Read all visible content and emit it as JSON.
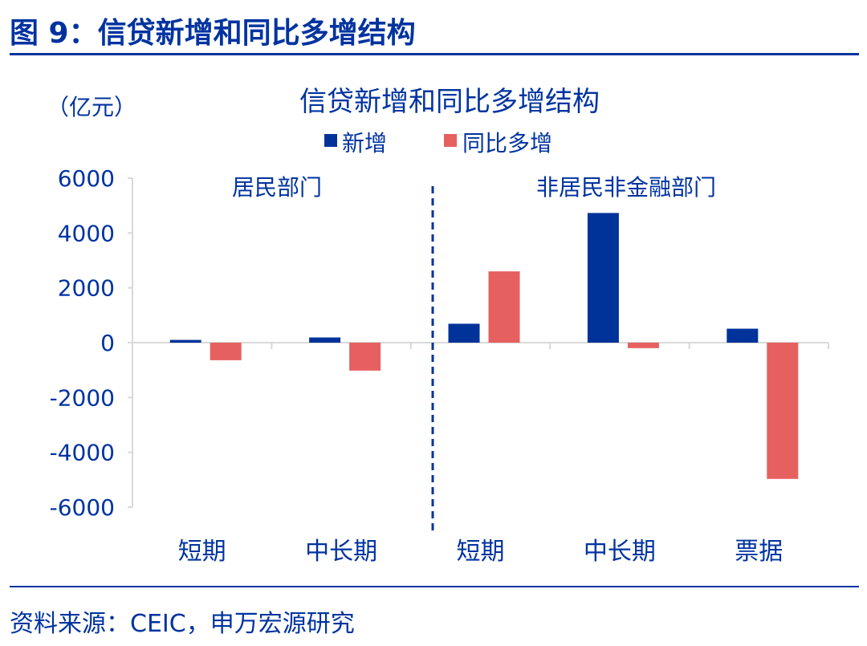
{
  "figure_title": "图 9：信贷新增和同比多增结构",
  "source": "资料来源：CEIC，申万宏源研究",
  "chart_data": {
    "type": "bar",
    "title": "信贷新增和同比多增结构",
    "ylabel": "（亿元）",
    "xlabel": "",
    "ylim": [
      -6000,
      6000
    ],
    "yticks": [
      "6000",
      "4000",
      "2000",
      "0",
      "-2000",
      "-4000",
      "-6000"
    ],
    "categories": [
      "短期",
      "中长期",
      "短期",
      "中长期",
      "票据"
    ],
    "groups": [
      {
        "label": "居民部门",
        "categories": [
          0,
          1
        ]
      },
      {
        "label": "非居民非金融部门",
        "categories": [
          2,
          3,
          4
        ]
      }
    ],
    "series": [
      {
        "name": "新增",
        "color": "#003399",
        "values": [
          100,
          190,
          690,
          4730,
          510
        ]
      },
      {
        "name": "同比多增",
        "color": "#e66060",
        "values": [
          -640,
          -1020,
          2600,
          -200,
          -4970
        ]
      }
    ],
    "legend": "top-center",
    "grid": false
  }
}
